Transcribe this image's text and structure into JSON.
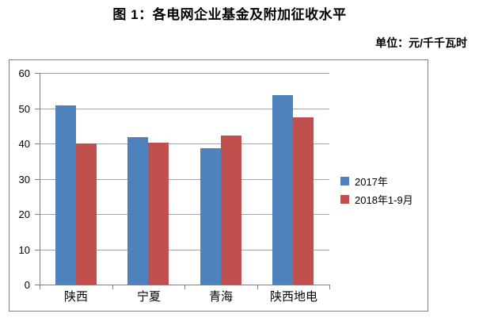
{
  "title": "图 1：各电网企业基金及附加征收水平",
  "unit_label": "单位：元/千千瓦时",
  "chart_data": {
    "type": "bar",
    "title": "图 1：各电网企业基金及附加征收水平",
    "subtitle": "单位：元/千千瓦时",
    "categories": [
      "陕西",
      "宁夏",
      "青海",
      "陕西地电"
    ],
    "series": [
      {
        "name": "2017年",
        "color": "#4F81BD",
        "values": [
          50.8,
          41.8,
          38.7,
          53.8
        ]
      },
      {
        "name": "2018年1-9月",
        "color": "#C0504D",
        "values": [
          40.0,
          40.2,
          42.2,
          47.4
        ]
      }
    ],
    "xlabel": "",
    "ylabel": "",
    "ylim": [
      0,
      60
    ],
    "yticks": [
      0,
      10,
      20,
      30,
      40,
      50,
      60
    ],
    "grid": true,
    "legend_position": "right"
  },
  "colors": {
    "series_blue": "#4F81BD",
    "series_red": "#C0504D",
    "gridline": "#a6a6a6",
    "axis": "#808080",
    "frame_border": "#808080",
    "background": "#ffffff",
    "text": "#000000"
  }
}
